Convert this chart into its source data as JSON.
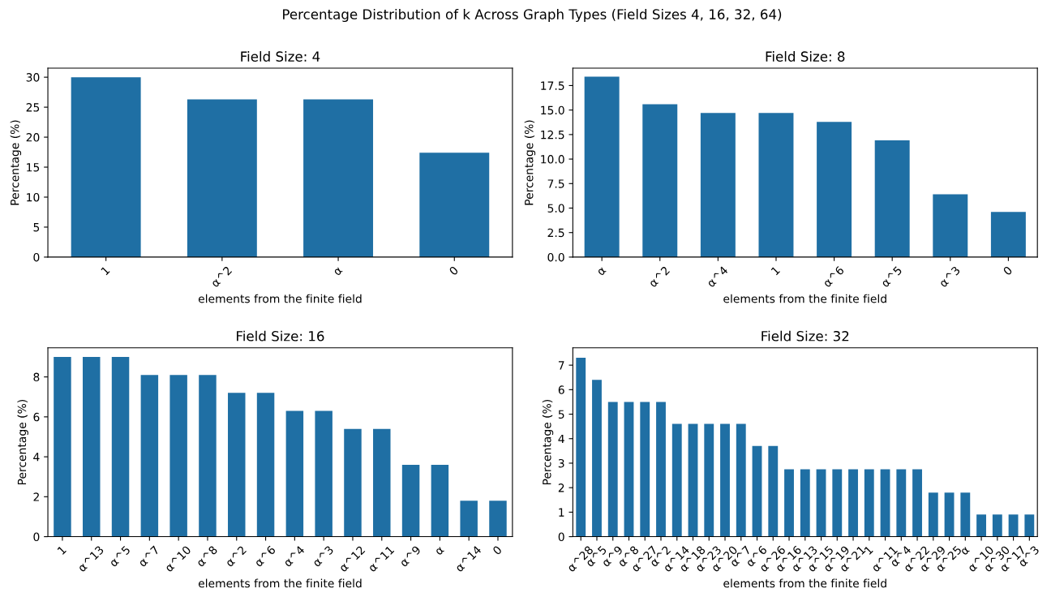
{
  "chart_data": [
    {
      "type": "bar",
      "title": "Field Size: 4",
      "annotations": [
        "Percentage Distribution of k Across Graph Types (Field Sizes 4, 16, 32, 64)"
      ],
      "xlabel": "elements from the finite field",
      "ylabel": "Percentage (%)",
      "color": "#1f6fa4",
      "categories": [
        "1",
        "α^2",
        "α",
        "0"
      ],
      "values": [
        30.0,
        26.3,
        26.3,
        17.4
      ],
      "ylim": [
        0,
        31.5
      ],
      "yticks": [
        0,
        5,
        10,
        15,
        20,
        25,
        30
      ],
      "grid": false
    },
    {
      "type": "bar",
      "title": "Field Size: 8",
      "xlabel": "elements from the finite field",
      "ylabel": "Percentage (%)",
      "color": "#1f6fa4",
      "categories": [
        "α",
        "α^2",
        "α^4",
        "1",
        "α^6",
        "α^5",
        "α^3",
        "0"
      ],
      "values": [
        18.4,
        15.6,
        14.7,
        14.7,
        13.8,
        11.9,
        6.4,
        4.6
      ],
      "ylim": [
        0,
        19.27
      ],
      "yticks": [
        {
          "value": 0,
          "label": "0.0"
        },
        {
          "value": 2.5,
          "label": "2.5"
        },
        {
          "value": 5,
          "label": "5.0"
        },
        {
          "value": 7.5,
          "label": "7.5"
        },
        {
          "value": 10,
          "label": "10.0"
        },
        {
          "value": 12.5,
          "label": "12.5"
        },
        {
          "value": 15,
          "label": "15.0"
        },
        {
          "value": 17.5,
          "label": "17.5"
        }
      ],
      "grid": false
    },
    {
      "type": "bar",
      "title": "Field Size: 16",
      "xlabel": "elements from the finite field",
      "ylabel": "Percentage (%)",
      "color": "#1f6fa4",
      "categories": [
        "1",
        "α^13",
        "α^5",
        "α^7",
        "α^10",
        "α^8",
        "α^2",
        "α^6",
        "α^4",
        "α^3",
        "α^12",
        "α^11",
        "α^9",
        "α",
        "α^14",
        "0"
      ],
      "values": [
        9.0,
        9.0,
        9.0,
        8.1,
        8.1,
        8.1,
        7.2,
        7.2,
        6.3,
        6.3,
        5.4,
        5.4,
        3.6,
        3.6,
        1.8,
        1.8
      ],
      "ylim": [
        0,
        9.46
      ],
      "yticks": [
        0,
        2,
        4,
        6,
        8
      ],
      "grid": false
    },
    {
      "type": "bar",
      "title": "Field Size: 32",
      "xlabel": "elements from the finite field",
      "ylabel": "Percentage (%)",
      "color": "#1f6fa4",
      "categories": [
        "α^28",
        "α^5",
        "α^9",
        "α^8",
        "α^27",
        "α^2",
        "α^14",
        "α^18",
        "α^23",
        "α^20",
        "α^7",
        "α^6",
        "α^26",
        "α^16",
        "α^13",
        "α^15",
        "α^19",
        "α^21",
        "1",
        "α^11",
        "α^4",
        "α^22",
        "α^29",
        "α^25",
        "α",
        "α^10",
        "α^30",
        "α^17",
        "α^3"
      ],
      "values": [
        7.3,
        6.4,
        5.5,
        5.5,
        5.5,
        5.5,
        4.6,
        4.6,
        4.6,
        4.6,
        4.6,
        3.7,
        3.7,
        2.75,
        2.75,
        2.75,
        2.75,
        2.75,
        2.75,
        2.75,
        2.75,
        2.75,
        1.8,
        1.8,
        1.8,
        0.9,
        0.9,
        0.9,
        0.9
      ],
      "ylim": [
        0,
        7.71
      ],
      "yticks": [
        0,
        1,
        2,
        3,
        4,
        5,
        6,
        7
      ],
      "grid": false
    }
  ]
}
